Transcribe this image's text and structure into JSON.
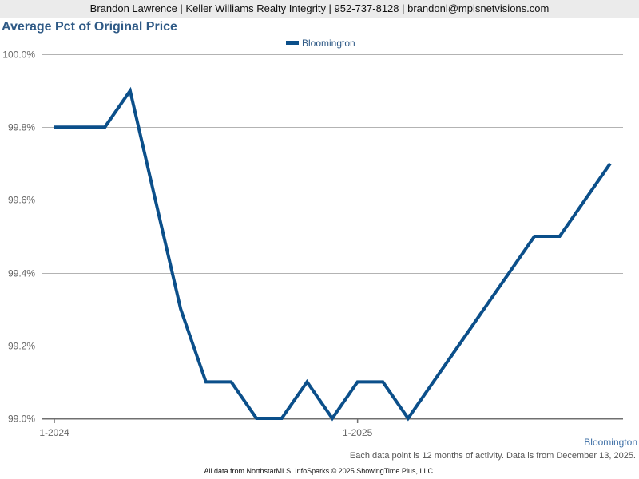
{
  "header": {
    "contact_line": "Brandon Lawrence | Keller Williams Realty Integrity | 952-737-8128 | brandonl@mplsnetvisions.com"
  },
  "chart_title": "Average Pct of Original Price",
  "legend": {
    "label": "Bloomington",
    "color": "#0b4f8a"
  },
  "series_label_bottom": "Bloomington",
  "note": "Each data point is 12 months of activity. Data is from December 13, 2025.",
  "footer": "All data from NorthstarMLS. InfoSparks © 2025 ShowingTime Plus, LLC.",
  "chart_data": {
    "type": "line",
    "title": "Average Pct of Original Price",
    "xlabel": "",
    "ylabel": "",
    "ylim": [
      99.0,
      100.0
    ],
    "yticks": [
      "99.0%",
      "99.2%",
      "99.4%",
      "99.6%",
      "99.8%",
      "100.0%"
    ],
    "xticks": [
      "1-2024",
      "1-2025"
    ],
    "grid": true,
    "legend_position": "top-center",
    "x": [
      "1-2024",
      "2-2024",
      "3-2024",
      "4-2024",
      "5-2024",
      "6-2024",
      "7-2024",
      "8-2024",
      "9-2024",
      "10-2024",
      "11-2024",
      "12-2024",
      "1-2025",
      "2-2025",
      "3-2025",
      "4-2025",
      "5-2025",
      "6-2025",
      "7-2025",
      "8-2025",
      "9-2025",
      "10-2025",
      "11-2025"
    ],
    "series": [
      {
        "name": "Bloomington",
        "color": "#0b4f8a",
        "values": [
          99.8,
          99.8,
          99.8,
          99.9,
          99.6,
          99.3,
          99.1,
          99.1,
          99.0,
          99.0,
          99.1,
          99.0,
          99.1,
          99.1,
          99.0,
          99.1,
          99.2,
          99.3,
          99.4,
          99.5,
          99.5,
          99.6,
          99.7
        ]
      }
    ]
  }
}
